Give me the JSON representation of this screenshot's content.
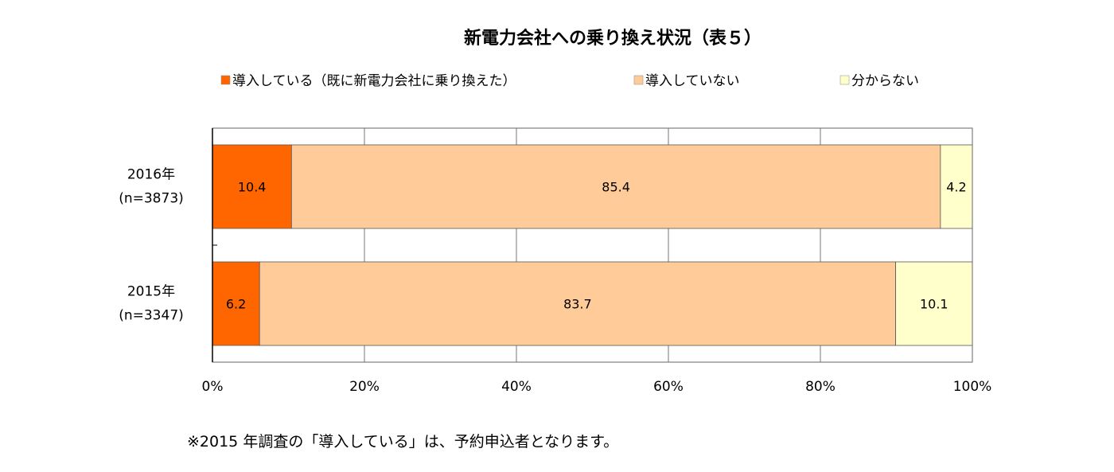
{
  "chart_data": {
    "type": "bar",
    "orientation": "horizontal",
    "stacked": "percent",
    "title": "新電力会社への乗り換え状況（表５）",
    "categories": [
      {
        "line1": "2016年",
        "line2": "(n=3873)"
      },
      {
        "line1": "2015年",
        "line2": "(n=3347)"
      }
    ],
    "series": [
      {
        "name": "導入している（既に新電力会社に乗り換えた）",
        "color": "#ff6600",
        "values": [
          10.4,
          6.2
        ],
        "labels": [
          "10.4",
          "6.2"
        ]
      },
      {
        "name": "導入していない",
        "color": "#ffcc99",
        "values": [
          85.4,
          83.7
        ],
        "labels": [
          "85.4",
          "83.7"
        ]
      },
      {
        "name": "分からない",
        "color": "#ffffcc",
        "values": [
          4.2,
          10.1
        ],
        "labels": [
          "4.2",
          "10.1"
        ]
      }
    ],
    "x_ticks": [
      "0%",
      "20%",
      "40%",
      "60%",
      "80%",
      "100%"
    ],
    "xlim": [
      0,
      100
    ],
    "grid": true,
    "legend_position": "top"
  },
  "footnote": "※2015 年調査の「導入している」は、予約申込者となります。"
}
